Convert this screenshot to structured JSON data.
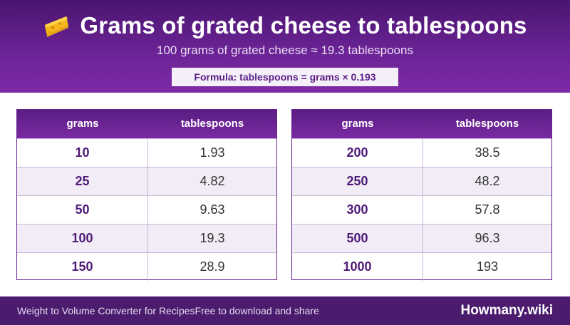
{
  "header": {
    "icon": "cheese-icon",
    "title": "Grams of grated cheese to tablespoons",
    "subtitle": "100 grams of grated cheese ≈ 19.3 tablespoons",
    "formula": "Formula: tablespoons = grams × 0.193"
  },
  "tables": [
    {
      "col_grams": "grams",
      "col_tbsp": "tablespoons",
      "rows": [
        {
          "grams": "10",
          "tbsp": "1.93"
        },
        {
          "grams": "25",
          "tbsp": "4.82"
        },
        {
          "grams": "50",
          "tbsp": "9.63"
        },
        {
          "grams": "100",
          "tbsp": "19.3"
        },
        {
          "grams": "150",
          "tbsp": "28.9"
        }
      ]
    },
    {
      "col_grams": "grams",
      "col_tbsp": "tablespoons",
      "rows": [
        {
          "grams": "200",
          "tbsp": "38.5"
        },
        {
          "grams": "250",
          "tbsp": "48.2"
        },
        {
          "grams": "300",
          "tbsp": "57.8"
        },
        {
          "grams": "500",
          "tbsp": "96.3"
        },
        {
          "grams": "1000",
          "tbsp": "193"
        }
      ]
    }
  ],
  "footer": {
    "left_text": "Weight to Volume Converter for Recipes",
    "tagline": "Free to download and share",
    "brand": "Howmany.wiki"
  },
  "colors": {
    "header_dark": "#4a1570",
    "header_light": "#7e2aa8",
    "accent_text": "#5b1f86",
    "footer_bg": "#4b1b6e",
    "row_alt": "#f1ecf6"
  }
}
